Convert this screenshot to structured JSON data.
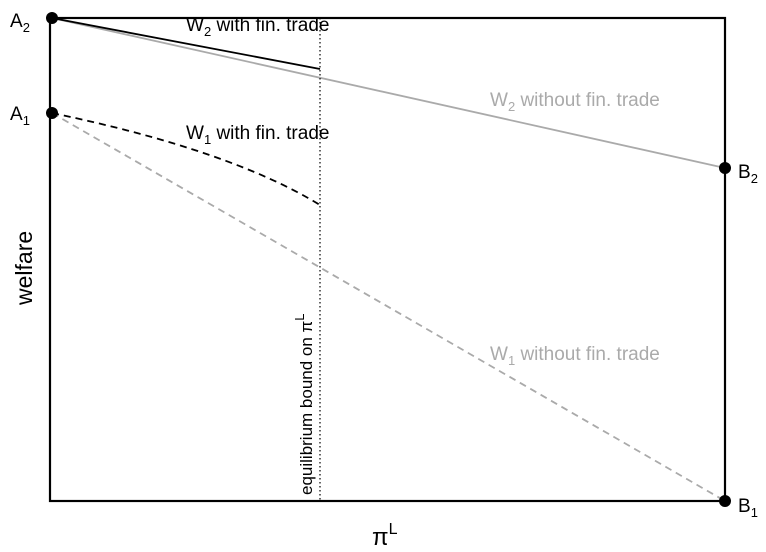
{
  "points": {
    "A2": {
      "base": "A",
      "sub": "2"
    },
    "A1": {
      "base": "A",
      "sub": "1"
    },
    "B2": {
      "base": "B",
      "sub": "2"
    },
    "B1": {
      "base": "B",
      "sub": "1"
    }
  },
  "curves": {
    "w2_with": {
      "base": "W",
      "sub": "2",
      "rest": " with fin. trade"
    },
    "w1_with": {
      "base": "W",
      "sub": "1",
      "rest": " with fin. trade"
    },
    "w2_without": {
      "base": "W",
      "sub": "2",
      "rest": " without fin. trade"
    },
    "w1_without": {
      "base": "W",
      "sub": "1",
      "rest": " without fin. trade"
    }
  },
  "bound": {
    "text": "equilibrium bound on ",
    "symbol": "π",
    "sup": "L"
  },
  "axes": {
    "x": {
      "symbol": "π",
      "sup": "L"
    },
    "y": {
      "label": "welfare"
    }
  },
  "colors": {
    "black": "#000000",
    "gray": "#aaaaaa"
  }
}
